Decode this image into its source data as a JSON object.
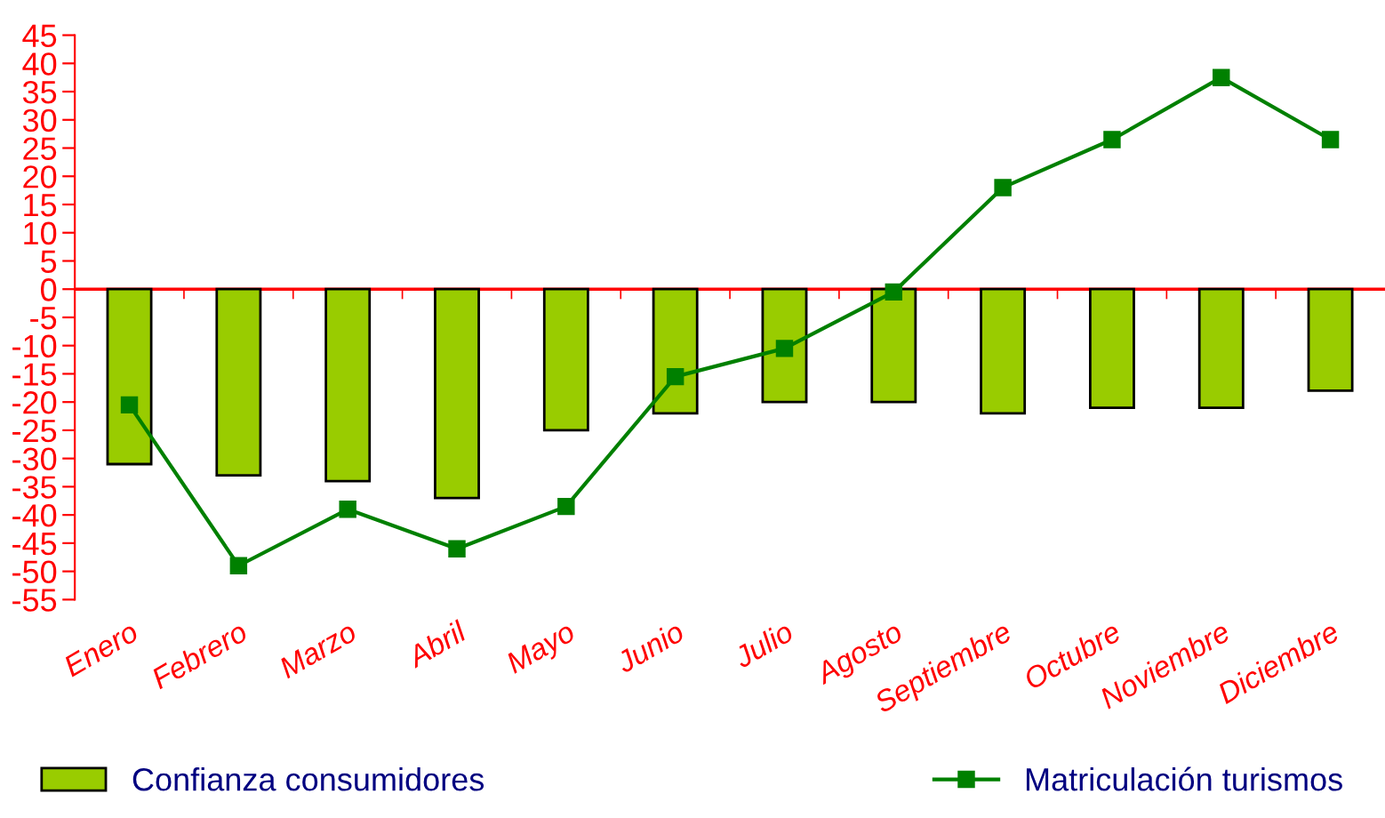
{
  "chart_data": {
    "type": "bar",
    "categories": [
      "Enero",
      "Febrero",
      "Marzo",
      "Abril",
      "Mayo",
      "Junio",
      "Julio",
      "Agosto",
      "Septiembre",
      "Octubre",
      "Noviembre",
      "Diciembre"
    ],
    "series": [
      {
        "name": "Confianza consumidores",
        "color": "#99cc00",
        "values": [
          -31,
          -33,
          -34,
          -37,
          -25,
          -22,
          -20,
          -20,
          -22,
          -21,
          -21,
          -18
        ]
      },
      {
        "name": "Matriculación turismos",
        "type": "line",
        "color": "#008000",
        "marker": "square",
        "values": [
          -20.5,
          -49,
          -39,
          -46,
          -38.5,
          -15.5,
          -10.5,
          -0.5,
          18,
          26.5,
          37.5,
          26.5
        ]
      }
    ],
    "ylim": [
      -55,
      45
    ],
    "yticks": [
      -55,
      -50,
      -45,
      -40,
      -35,
      -30,
      -25,
      -20,
      -15,
      -10,
      -5,
      0,
      5,
      10,
      15,
      20,
      25,
      30,
      35,
      40,
      45
    ],
    "ref_lines": [
      {
        "axis": "y",
        "value": 0,
        "color": "#ff0000"
      }
    ],
    "grid": false,
    "legend": "bottom"
  }
}
